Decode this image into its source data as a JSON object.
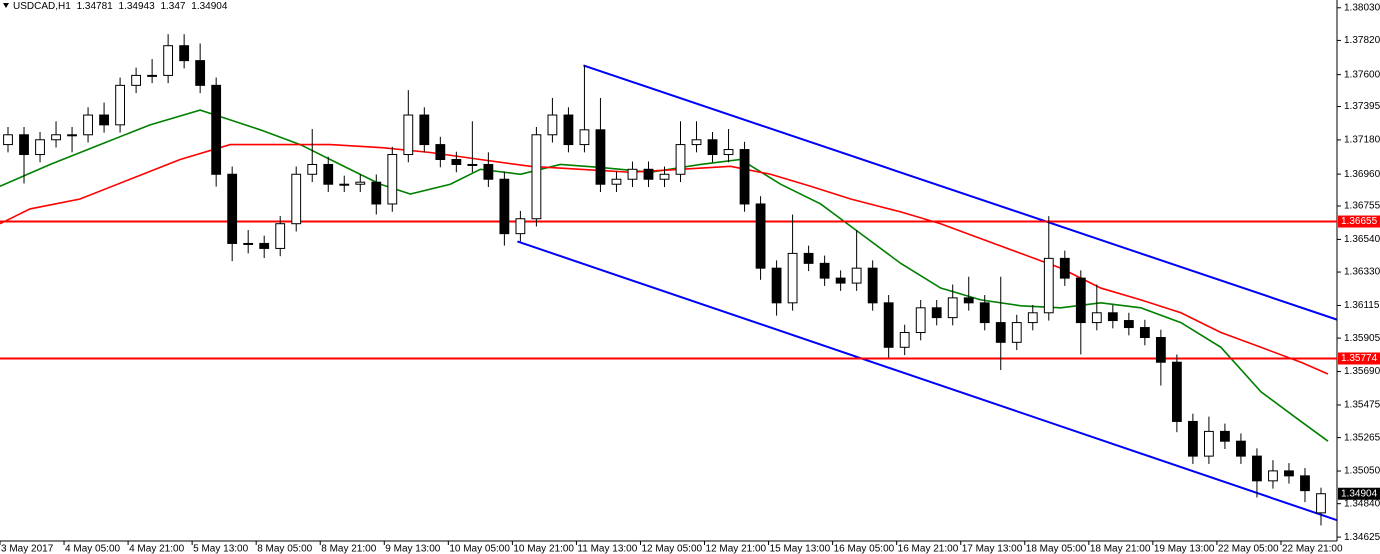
{
  "chart_data": {
    "type": "candlestick",
    "title": "USDCAD,H1",
    "xlim": [
      0,
      334
    ],
    "ylim": [
      1.346,
      1.3808
    ],
    "up_color": "#ffffff",
    "down_color": "#000000",
    "yticks": [
      {
        "value": 1.3803,
        "label": "1.38030"
      },
      {
        "value": 1.3782,
        "label": "1.37820"
      },
      {
        "value": 1.376,
        "label": "1.37600"
      },
      1.37395,
      {
        "value": 1.3718,
        "label": "1.37180"
      },
      {
        "value": 1.3696,
        "label": "1.36960"
      },
      1.36755,
      {
        "value": 1.3654,
        "label": "1.36540"
      },
      {
        "value": 1.3633,
        "label": "1.36330"
      },
      1.36115,
      1.35905,
      {
        "value": 1.3569,
        "label": "1.35690"
      },
      1.35475,
      1.35265,
      {
        "value": 1.3505,
        "label": "1.35050"
      },
      {
        "value": 1.3484,
        "label": "1.34840"
      },
      1.34625
    ],
    "xticks": [
      {
        "value": 0,
        "label": "3 May 2017"
      },
      {
        "value": 16,
        "label": "4 May 05:00"
      },
      {
        "value": 32,
        "label": "4 May 21:00"
      },
      {
        "value": 48,
        "label": "5 May 13:00"
      },
      {
        "value": 64,
        "label": "8 May 05:00"
      },
      {
        "value": 80,
        "label": "8 May 21:00"
      },
      {
        "value": 96,
        "label": "9 May 13:00"
      },
      {
        "value": 112,
        "label": "10 May 05:00"
      },
      {
        "value": 128,
        "label": "10 May 21:00"
      },
      {
        "value": 144,
        "label": "11 May 13:00"
      },
      {
        "value": 160,
        "label": "12 May 05:00"
      },
      {
        "value": 176,
        "label": "12 May 21:00"
      },
      {
        "value": 192,
        "label": "15 May 13:00"
      },
      {
        "value": 208,
        "label": "16 May 05:00"
      },
      {
        "value": 224,
        "label": "16 May 21:00"
      },
      {
        "value": 240,
        "label": "17 May 13:00"
      },
      {
        "value": 256,
        "label": "18 May 05:00"
      },
      {
        "value": 272,
        "label": "18 May 21:00"
      },
      {
        "value": 288,
        "label": "19 May 13:00"
      },
      {
        "value": 304,
        "label": "22 May 05:00"
      },
      {
        "value": 320,
        "label": "22 May 21:00"
      }
    ],
    "x": [
      2,
      6,
      10,
      14,
      18,
      22,
      26,
      30,
      34,
      38,
      42,
      46,
      50,
      54,
      58,
      62,
      66,
      70,
      74,
      78,
      82,
      86,
      90,
      94,
      98,
      102,
      106,
      110,
      114,
      118,
      122,
      126,
      130,
      134,
      138,
      142,
      146,
      150,
      154,
      158,
      162,
      166,
      170,
      174,
      178,
      182,
      186,
      190,
      194,
      198,
      202,
      206,
      210,
      214,
      218,
      222,
      226,
      230,
      234,
      238,
      242,
      246,
      250,
      254,
      258,
      262,
      266,
      270,
      274,
      278,
      282,
      286,
      290,
      294,
      298,
      302,
      306,
      310,
      314,
      318,
      322,
      326,
      330
    ],
    "open": [
      1.3715,
      1.37213,
      1.37086,
      1.37181,
      1.37213,
      1.37213,
      1.3734,
      1.37277,
      1.37531,
      1.37595,
      1.37595,
      1.37786,
      1.3769,
      1.37531,
      1.36959,
      1.36514,
      1.36514,
      1.36482,
      1.36641,
      1.36959,
      1.37022,
      1.36895,
      1.36895,
      1.36908,
      1.36768,
      1.37086,
      1.3734,
      1.3715,
      1.37054,
      1.37022,
      1.37022,
      1.36927,
      1.36577,
      1.36673,
      1.37213,
      1.3734,
      1.3715,
      1.37245,
      1.36895,
      1.36927,
      1.36991,
      1.36927,
      1.36959,
      1.3715,
      1.37181,
      1.37086,
      1.37118,
      1.36768,
      1.36355,
      1.36132,
      1.3645,
      1.36386,
      1.36291,
      1.36259,
      1.36355,
      1.36132,
      1.35846,
      1.35941,
      1.361,
      1.36037,
      1.36164,
      1.36132,
      1.36005,
      1.35878,
      1.36005,
      1.36068,
      1.36418,
      1.36291,
      1.36005,
      1.36068,
      1.36018,
      1.35973,
      1.35909,
      1.3575,
      1.35369,
      1.35146,
      1.35305,
      1.35242,
      1.35146,
      1.34987,
      1.35051,
      1.35019,
      1.34781
    ],
    "high": [
      1.37263,
      1.37263,
      1.37231,
      1.373,
      1.37263,
      1.3739,
      1.3742,
      1.37581,
      1.37645,
      1.377,
      1.3786,
      1.3786,
      1.378,
      1.37581,
      1.37009,
      1.366,
      1.36564,
      1.36691,
      1.37009,
      1.3725,
      1.37072,
      1.3695,
      1.36958,
      1.36958,
      1.37136,
      1.375,
      1.3739,
      1.372,
      1.37104,
      1.373,
      1.371,
      1.36977,
      1.36723,
      1.37263,
      1.3745,
      1.3739,
      1.37658,
      1.3745,
      1.36977,
      1.37041,
      1.37041,
      1.37009,
      1.373,
      1.373,
      1.37231,
      1.3725,
      1.37168,
      1.36818,
      1.36405,
      1.367,
      1.365,
      1.36436,
      1.36341,
      1.366,
      1.36405,
      1.36182,
      1.35991,
      1.3615,
      1.3615,
      1.3625,
      1.363,
      1.36182,
      1.363,
      1.36055,
      1.36118,
      1.3669,
      1.36468,
      1.36341,
      1.3625,
      1.36118,
      1.36068,
      1.36023,
      1.35959,
      1.358,
      1.35419,
      1.354,
      1.35355,
      1.35292,
      1.35196,
      1.3512,
      1.35101,
      1.35069,
      1.34943
    ],
    "low": [
      1.371,
      1.369,
      1.37036,
      1.37131,
      1.371,
      1.37163,
      1.37227,
      1.37227,
      1.37481,
      1.37545,
      1.37545,
      1.3764,
      1.37481,
      1.3688,
      1.364,
      1.3645,
      1.3642,
      1.36432,
      1.36591,
      1.36909,
      1.36845,
      1.36845,
      1.36845,
      1.367,
      1.36718,
      1.37036,
      1.371,
      1.37004,
      1.36972,
      1.36972,
      1.36877,
      1.365,
      1.36527,
      1.36623,
      1.37163,
      1.371,
      1.371,
      1.36845,
      1.36845,
      1.36877,
      1.36877,
      1.36877,
      1.36909,
      1.371,
      1.37036,
      1.37036,
      1.36718,
      1.3628,
      1.3605,
      1.36082,
      1.36336,
      1.36241,
      1.36209,
      1.36209,
      1.36082,
      1.3578,
      1.35796,
      1.35891,
      1.35987,
      1.35987,
      1.36082,
      1.35955,
      1.357,
      1.35828,
      1.35955,
      1.36018,
      1.36241,
      1.358,
      1.35955,
      1.35968,
      1.35923,
      1.35859,
      1.356,
      1.353,
      1.35096,
      1.35096,
      1.35192,
      1.35096,
      1.3488,
      1.34937,
      1.34969,
      1.3485,
      1.347
    ],
    "close": [
      1.37213,
      1.37086,
      1.37181,
      1.37213,
      1.37213,
      1.3734,
      1.37277,
      1.37531,
      1.37595,
      1.37595,
      1.37786,
      1.3769,
      1.37531,
      1.36959,
      1.36514,
      1.36514,
      1.36482,
      1.36641,
      1.36959,
      1.37022,
      1.36895,
      1.36895,
      1.36908,
      1.36768,
      1.37086,
      1.3734,
      1.3715,
      1.37054,
      1.37022,
      1.37022,
      1.36927,
      1.36577,
      1.36673,
      1.37213,
      1.3734,
      1.3715,
      1.37245,
      1.36895,
      1.36927,
      1.36991,
      1.36927,
      1.36959,
      1.3715,
      1.37181,
      1.37086,
      1.37118,
      1.36768,
      1.36355,
      1.36132,
      1.3645,
      1.36386,
      1.36291,
      1.36259,
      1.36355,
      1.36132,
      1.35846,
      1.35941,
      1.361,
      1.36037,
      1.36164,
      1.36132,
      1.36005,
      1.35878,
      1.36005,
      1.36068,
      1.36418,
      1.36291,
      1.36005,
      1.36068,
      1.36018,
      1.35973,
      1.35909,
      1.3575,
      1.35369,
      1.35146,
      1.35305,
      1.35242,
      1.35146,
      1.34987,
      1.35051,
      1.35019,
      1.34924,
      1.34904
    ],
    "overlays": [
      {
        "color": "#008000",
        "x": [
          0,
          12.5,
          25,
          37.5,
          50,
          57.5,
          65,
          75,
          85,
          95,
          102.5,
          112.5,
          120,
          130,
          140,
          150,
          162.5,
          175,
          185,
          195,
          205,
          215,
          225,
          235,
          245,
          255,
          265,
          275,
          285,
          295,
          305,
          315,
          325,
          331.75
        ],
        "values": [
          1.36882,
          1.37022,
          1.3715,
          1.37277,
          1.37372,
          1.37309,
          1.37245,
          1.3715,
          1.37022,
          1.36895,
          1.36832,
          1.36895,
          1.36991,
          1.36959,
          1.37022,
          1.37003,
          1.36972,
          1.37022,
          1.37054,
          1.36895,
          1.36768,
          1.36577,
          1.36386,
          1.36227,
          1.36151,
          1.36113,
          1.361,
          1.36132,
          1.361,
          1.36005,
          1.35846,
          1.3556,
          1.35369,
          1.35242
        ]
      },
      {
        "color": "#ff0000",
        "x": [
          0,
          7.5,
          20,
          32.5,
          45,
          57.5,
          70,
          82.5,
          95,
          107.5,
          120,
          132.5,
          145,
          157.5,
          170,
          182.5,
          192.5,
          202.5,
          212.5,
          225,
          235,
          245,
          255,
          265,
          275,
          285,
          295,
          305,
          315,
          325,
          331.75
        ],
        "values": [
          1.36641,
          1.36736,
          1.368,
          1.36927,
          1.37054,
          1.3715,
          1.3715,
          1.3715,
          1.37131,
          1.37099,
          1.37054,
          1.3701,
          1.36991,
          1.36972,
          1.36991,
          1.3701,
          1.36959,
          1.36882,
          1.368,
          1.36717,
          1.36641,
          1.36545,
          1.3645,
          1.36355,
          1.36227,
          1.36151,
          1.36068,
          1.35941,
          1.35846,
          1.3575,
          1.35674
        ]
      }
    ],
    "trendlines": [
      {
        "color": "#0000ff",
        "x": [
          145.75,
          334
        ],
        "values": [
          1.37659,
          1.36024
        ]
      },
      {
        "color": "#0000ff",
        "x": [
          129.25,
          334
        ],
        "values": [
          1.36527,
          1.34734
        ]
      }
    ],
    "levels": [
      {
        "value": 1.36655,
        "color": "#ff0000"
      },
      {
        "value": 1.35774,
        "color": "#ff0000"
      }
    ]
  }
}
